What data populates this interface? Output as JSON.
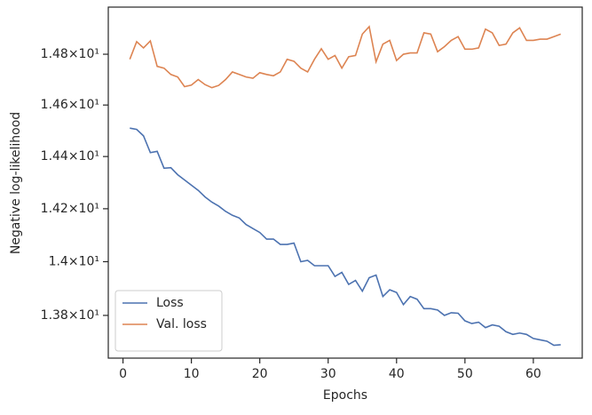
{
  "chart_data": {
    "type": "line",
    "xlabel": "Epochs",
    "ylabel": "Negative log-likelihood",
    "x": [
      1,
      2,
      3,
      4,
      5,
      6,
      7,
      8,
      9,
      10,
      11,
      12,
      13,
      14,
      15,
      16,
      17,
      18,
      19,
      20,
      21,
      22,
      23,
      24,
      25,
      26,
      27,
      28,
      29,
      30,
      31,
      32,
      33,
      34,
      35,
      36,
      37,
      38,
      39,
      40,
      41,
      42,
      43,
      44,
      45,
      46,
      47,
      48,
      49,
      50,
      51,
      52,
      53,
      54,
      55,
      56,
      57,
      58,
      59,
      60,
      61,
      62,
      63,
      64
    ],
    "series": [
      {
        "name": "Loss",
        "color": "#4c72b0",
        "values": [
          14.51,
          14.505,
          14.48,
          14.415,
          14.42,
          14.355,
          14.357,
          14.33,
          14.31,
          14.29,
          14.27,
          14.245,
          14.225,
          14.21,
          14.19,
          14.175,
          14.165,
          14.14,
          14.125,
          14.11,
          14.085,
          14.085,
          14.065,
          14.065,
          14.07,
          14.0,
          14.005,
          13.985,
          13.985,
          13.985,
          13.945,
          13.96,
          13.915,
          13.93,
          13.89,
          13.94,
          13.95,
          13.87,
          13.895,
          13.885,
          13.84,
          13.87,
          13.86,
          13.825,
          13.825,
          13.82,
          13.8,
          13.81,
          13.808,
          13.78,
          13.77,
          13.775,
          13.755,
          13.765,
          13.76,
          13.74,
          13.73,
          13.735,
          13.73,
          13.715,
          13.71,
          13.705,
          13.69,
          13.692
        ]
      },
      {
        "name": "Val. loss",
        "color": "#dd8452",
        "values": [
          14.78,
          14.85,
          14.825,
          14.853,
          14.752,
          14.745,
          14.72,
          14.71,
          14.672,
          14.678,
          14.7,
          14.68,
          14.668,
          14.677,
          14.7,
          14.73,
          14.72,
          14.71,
          14.705,
          14.727,
          14.72,
          14.715,
          14.73,
          14.78,
          14.772,
          14.745,
          14.73,
          14.78,
          14.822,
          14.78,
          14.795,
          14.745,
          14.79,
          14.795,
          14.88,
          14.91,
          14.77,
          14.84,
          14.855,
          14.775,
          14.8,
          14.805,
          14.805,
          14.885,
          14.88,
          14.81,
          14.83,
          14.855,
          14.87,
          14.82,
          14.82,
          14.825,
          14.9,
          14.885,
          14.835,
          14.84,
          14.885,
          14.905,
          14.855,
          14.855,
          14.86,
          14.86,
          14.87,
          14.88
        ]
      }
    ],
    "xlim": [
      -2.15,
      67.15
    ],
    "xticks": [
      0,
      10,
      20,
      30,
      40,
      50,
      60
    ],
    "ylim": [
      13.643,
      14.988
    ],
    "yscale": "log",
    "yticks": [
      {
        "value": 13.8,
        "label": "1.38×10¹"
      },
      {
        "value": 14.0,
        "label": "1.4×10¹"
      },
      {
        "value": 14.2,
        "label": "1.42×10¹"
      },
      {
        "value": 14.4,
        "label": "1.44×10¹"
      },
      {
        "value": 14.6,
        "label": "1.46×10¹"
      },
      {
        "value": 14.8,
        "label": "1.48×10¹"
      }
    ],
    "legend": "lower left"
  }
}
